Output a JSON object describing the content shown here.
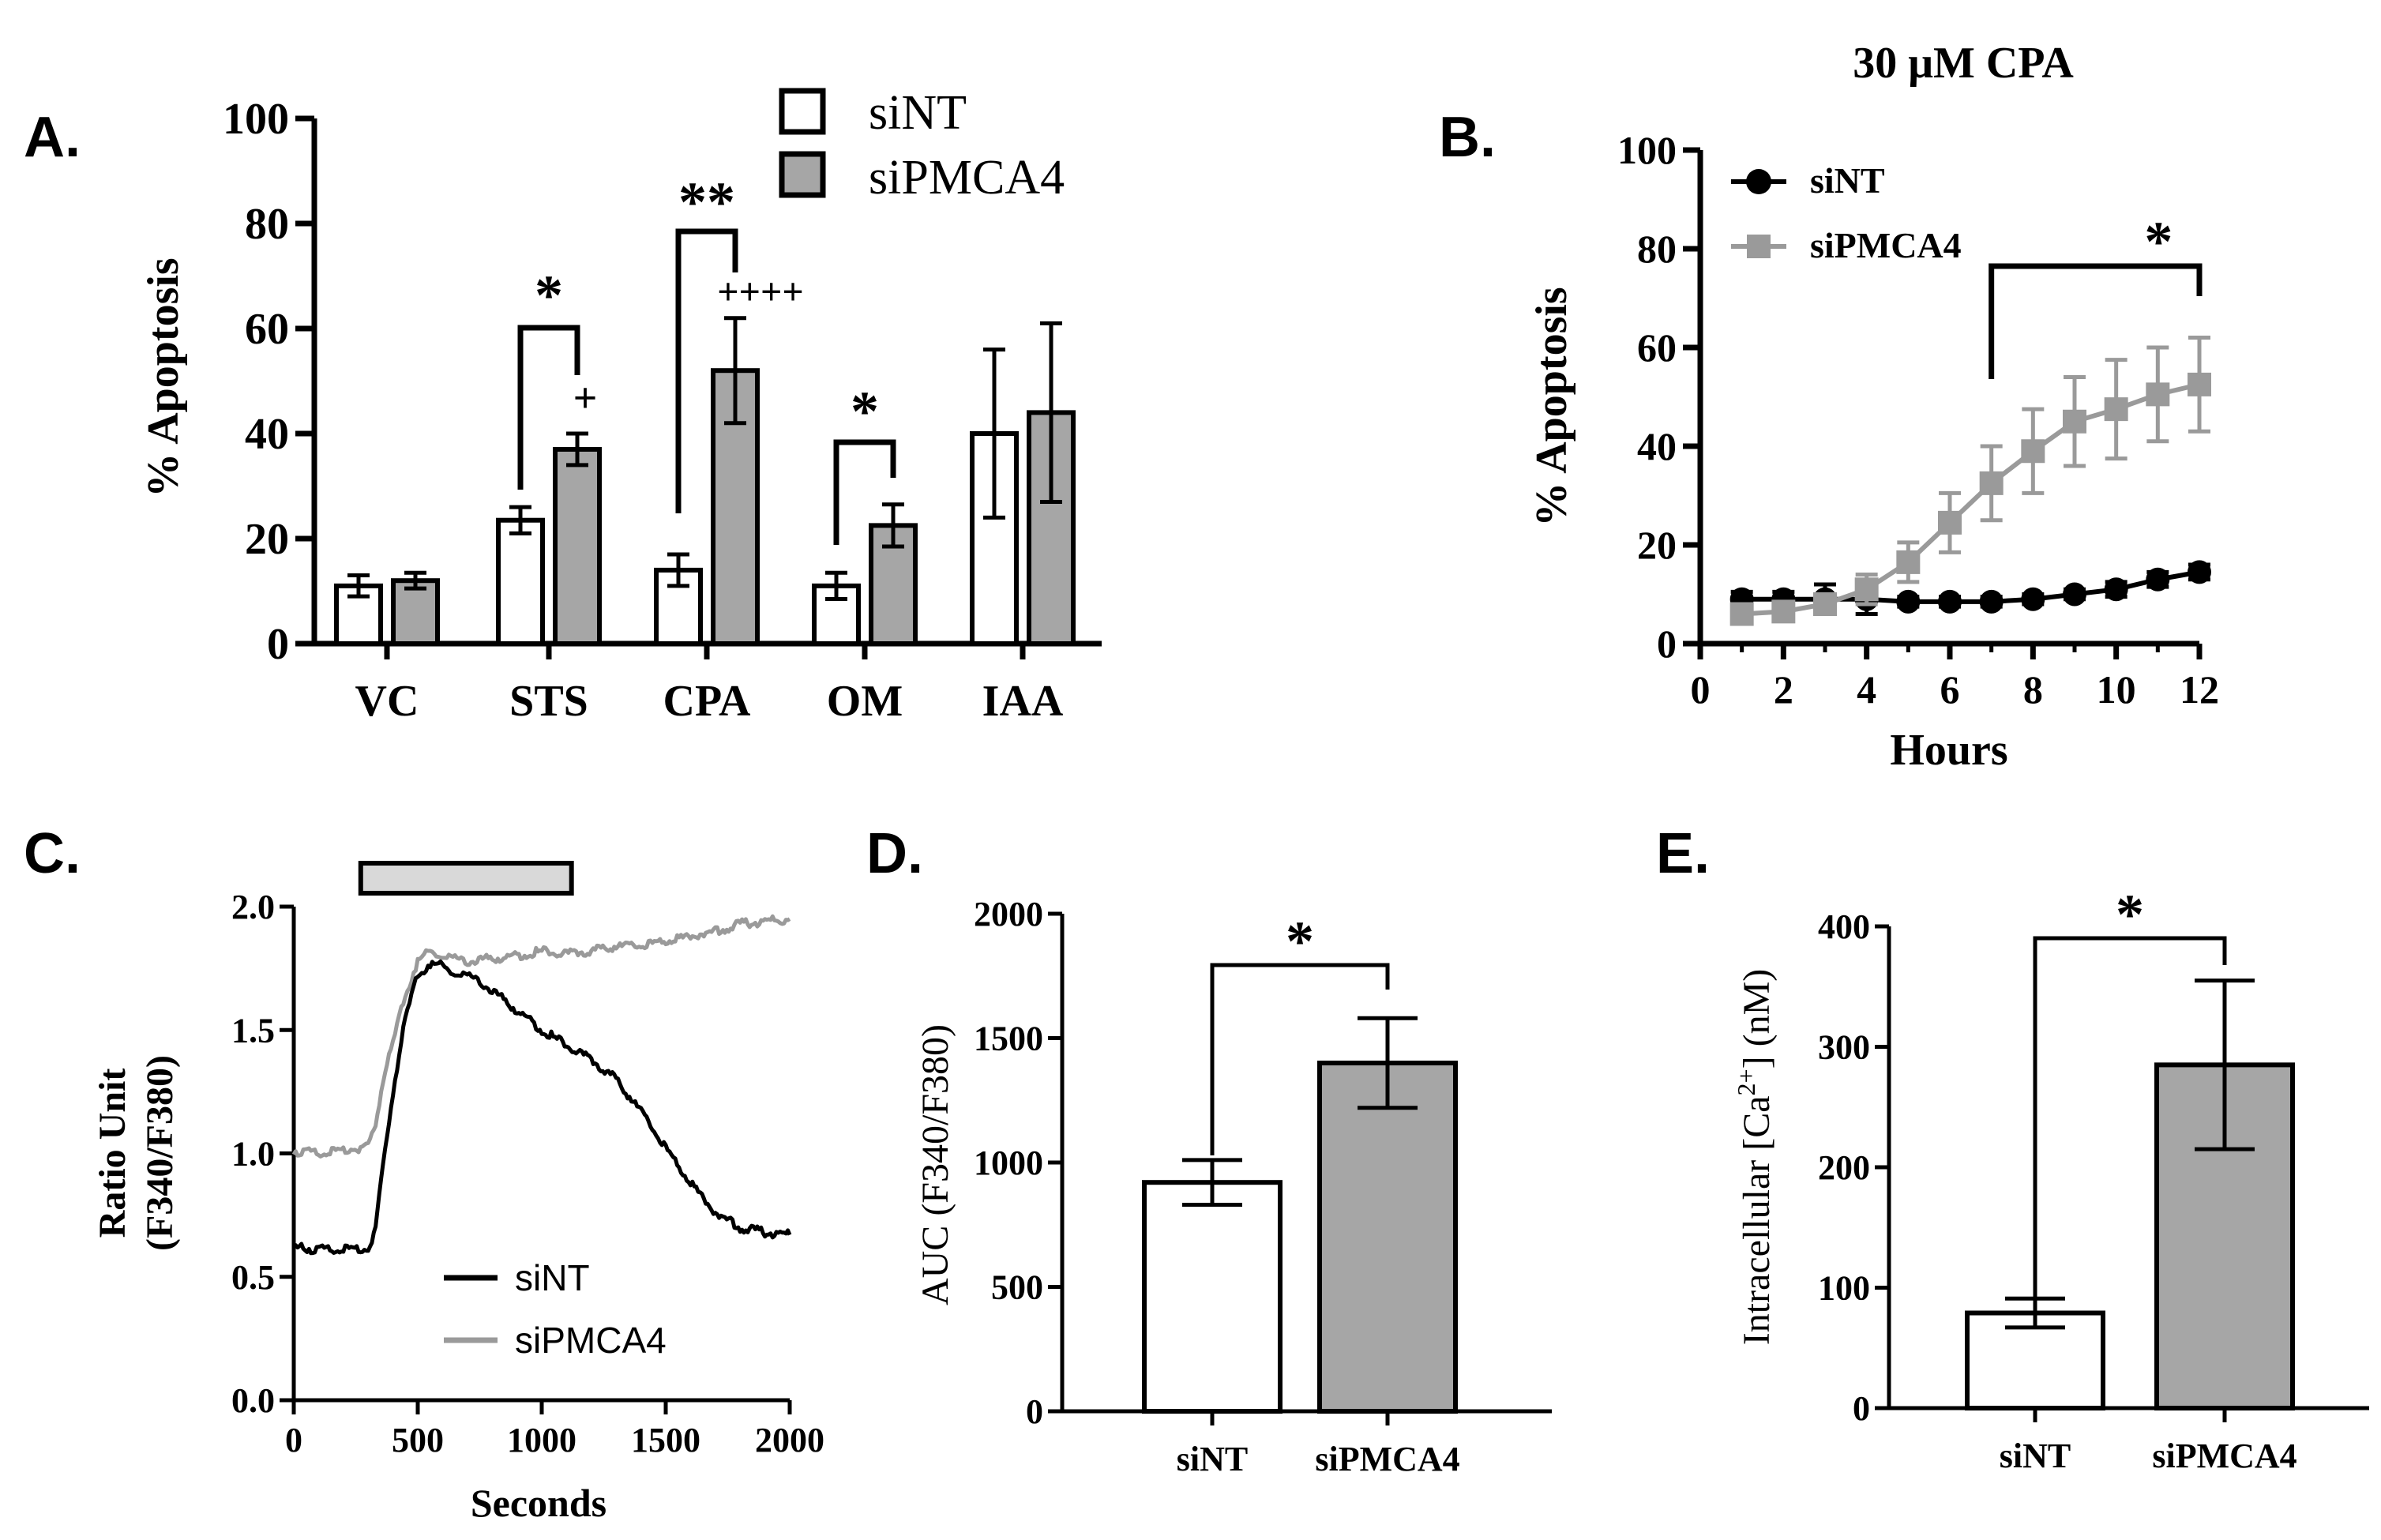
{
  "colors": {
    "black": "#000000",
    "gray_fill": "#a6a6a6",
    "gray_line": "#9a9a9a",
    "bar_light": "#d9d9d9"
  },
  "panels": {
    "A": {
      "label": "A.",
      "chart_data": {
        "type": "bar",
        "categories": [
          "VC",
          "STS",
          "CPA",
          "OM",
          "IAA"
        ],
        "series": [
          {
            "name": "siNT",
            "values": [
              11,
              23.5,
              14,
              11,
              40
            ],
            "errors": [
              2,
              2.5,
              3,
              2.5,
              16
            ]
          },
          {
            "name": "siPMCA4",
            "values": [
              12,
              37,
              52,
              22.5,
              44
            ],
            "errors": [
              1.5,
              3,
              10,
              4,
              17
            ]
          }
        ],
        "ylabel": "% Apoptosis",
        "ylim": [
          0,
          100
        ],
        "yticks": [
          "0",
          "20",
          "40",
          "60",
          "80",
          "100"
        ],
        "legend": "top",
        "annotations": [
          {
            "text": "*",
            "category": "STS"
          },
          {
            "text": "+",
            "category": "STS"
          },
          {
            "text": "**",
            "category": "CPA"
          },
          {
            "text": "++++",
            "category": "CPA"
          },
          {
            "text": "*",
            "category": "OM"
          }
        ]
      }
    },
    "B": {
      "label": "B.",
      "chart_data": {
        "type": "line",
        "title": "30 μM CPA",
        "xlabel": "Hours",
        "ylabel": "% Apoptosis",
        "xlim": [
          0,
          12
        ],
        "ylim": [
          0,
          100
        ],
        "xticks": [
          "0",
          "2",
          "4",
          "6",
          "8",
          "10",
          "12"
        ],
        "yticks": [
          "0",
          "20",
          "40",
          "60",
          "80",
          "100"
        ],
        "x": [
          1,
          2,
          3,
          4,
          5,
          6,
          7,
          8,
          9,
          10,
          11,
          12
        ],
        "series": [
          {
            "name": "siNT",
            "values": [
              9,
              9,
              9,
              9,
              8.5,
              8.5,
              8.5,
              9,
              10,
              11,
              13,
              14.5
            ],
            "errors": [
              1.5,
              1.5,
              3,
              3,
              1,
              1,
              1,
              1,
              1,
              1.5,
              1.5,
              1.5
            ]
          },
          {
            "name": "siPMCA4",
            "values": [
              6,
              6.5,
              8,
              11,
              16.5,
              24.5,
              32.5,
              39,
              45,
              47.5,
              50.5,
              52.5
            ],
            "errors": [
              1.5,
              1.5,
              2,
              3,
              4,
              6,
              7.5,
              8.5,
              9,
              10,
              9.5,
              9.5
            ]
          }
        ],
        "legend": "top-left",
        "annotations": [
          {
            "text": "*",
            "x_from": 7,
            "x_to": 12
          }
        ]
      }
    },
    "C": {
      "label": "C.",
      "chart_data": {
        "type": "line",
        "xlabel": "Seconds",
        "ylabel": [
          "Ratio Unit",
          "(F340/F380)"
        ],
        "xlim": [
          0,
          2000
        ],
        "ylim": [
          0,
          2.0
        ],
        "xticks": [
          "0",
          "500",
          "1000",
          "1500",
          "2000"
        ],
        "yticks": [
          "0.0",
          "0.5",
          "1.0",
          "1.5",
          "2.0"
        ],
        "treatment_bar": [
          270,
          1120
        ],
        "series": [
          {
            "name": "siNT",
            "x": [
              0,
              100,
              200,
              300,
              330,
              360,
              400,
              450,
              500,
              550,
              600,
              650,
              700,
              750,
              800,
              900,
              1000,
              1100,
              1200,
              1300,
              1400,
              1500,
              1600,
              1700,
              1800,
              1900,
              2000
            ],
            "values": [
              0.62,
              0.61,
              0.61,
              0.61,
              0.7,
              0.95,
              1.25,
              1.55,
              1.72,
              1.77,
              1.76,
              1.73,
              1.72,
              1.7,
              1.66,
              1.58,
              1.5,
              1.44,
              1.38,
              1.3,
              1.17,
              1.02,
              0.88,
              0.76,
              0.7,
              0.68,
              0.67
            ]
          },
          {
            "name": "siPMCA4",
            "x": [
              0,
              100,
              200,
              300,
              330,
              360,
              400,
              450,
              500,
              550,
              600,
              650,
              700,
              800,
              900,
              1000,
              1100,
              1200,
              1300,
              1400,
              1500,
              1600,
              1700,
              1800,
              1900,
              2000
            ],
            "values": [
              1.01,
              1.0,
              1.01,
              1.03,
              1.12,
              1.3,
              1.45,
              1.64,
              1.78,
              1.82,
              1.8,
              1.79,
              1.78,
              1.79,
              1.8,
              1.82,
              1.81,
              1.82,
              1.84,
              1.84,
              1.86,
              1.88,
              1.9,
              1.93,
              1.94,
              1.95
            ]
          }
        ],
        "legend": "bottom"
      }
    },
    "D": {
      "label": "D.",
      "chart_data": {
        "type": "bar",
        "categories": [
          "siNT",
          "siPMCA4"
        ],
        "values": [
          920,
          1400
        ],
        "errors": [
          90,
          180
        ],
        "ylabel": "AUC (F340/F380)",
        "ylim": [
          0,
          2000
        ],
        "yticks": [
          "0",
          "500",
          "1000",
          "1500",
          "2000"
        ],
        "annotations": [
          {
            "text": "*"
          }
        ]
      }
    },
    "E": {
      "label": "E.",
      "chart_data": {
        "type": "bar",
        "categories": [
          "siNT",
          "siPMCA4"
        ],
        "values": [
          79,
          285
        ],
        "errors": [
          12,
          70
        ],
        "ylabel": "Intracellular [Ca2+] (nM)",
        "ylim": [
          0,
          400
        ],
        "yticks": [
          "0",
          "100",
          "200",
          "300",
          "400"
        ],
        "annotations": [
          {
            "text": "*"
          }
        ]
      }
    }
  }
}
